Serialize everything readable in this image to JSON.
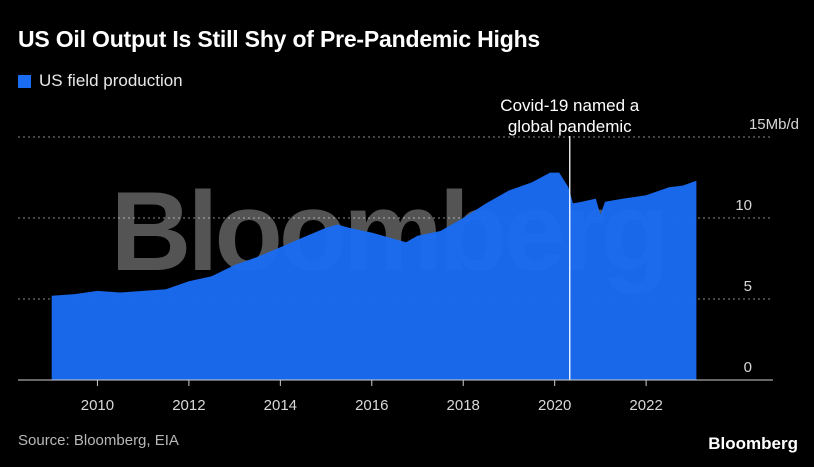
{
  "header": {
    "title": "US Oil Output Is Still Shy of Pre-Pandemic Highs"
  },
  "footer": {
    "source": "Source: Bloomberg, EIA",
    "brand": "Bloomberg"
  },
  "watermark": "Bloomberg",
  "colors": {
    "series": "#1a6cf2",
    "background": "#000000",
    "grid": "#8a8a8a"
  },
  "chart_data": {
    "type": "area",
    "title": "US Oil Output Is Still Shy of Pre-Pandemic Highs",
    "xlabel": "",
    "ylabel": "",
    "xlim": [
      2008.7,
      2024.6
    ],
    "ylim": [
      0,
      15
    ],
    "grid": true,
    "legend_position": "top-left",
    "y_ticks": [
      {
        "value": 0,
        "label": "0"
      },
      {
        "value": 5,
        "label": "5"
      },
      {
        "value": 10,
        "label": "10"
      },
      {
        "value": 15,
        "label": "15Mb/d"
      }
    ],
    "x_ticks": [
      {
        "value": 2010,
        "label": "2010"
      },
      {
        "value": 2012,
        "label": "2012"
      },
      {
        "value": 2014,
        "label": "2014"
      },
      {
        "value": 2016,
        "label": "2016"
      },
      {
        "value": 2018,
        "label": "2018"
      },
      {
        "value": 2020,
        "label": "2020"
      },
      {
        "value": 2022,
        "label": "2022"
      }
    ],
    "series": [
      {
        "name": "US field production",
        "x": [
          2009.0,
          2009.5,
          2010.0,
          2010.5,
          2011.0,
          2011.5,
          2012.0,
          2012.5,
          2013.0,
          2013.5,
          2014.0,
          2014.5,
          2015.0,
          2015.25,
          2015.5,
          2016.0,
          2016.5,
          2016.75,
          2017.0,
          2017.5,
          2018.0,
          2018.5,
          2019.0,
          2019.5,
          2019.9,
          2020.1,
          2020.3,
          2020.4,
          2020.6,
          2020.9,
          2021.0,
          2021.1,
          2021.5,
          2022.0,
          2022.5,
          2022.8,
          2023.0,
          2023.1
        ],
        "values": [
          5.2,
          5.3,
          5.5,
          5.4,
          5.5,
          5.6,
          6.1,
          6.4,
          7.1,
          7.6,
          8.2,
          8.8,
          9.4,
          9.6,
          9.4,
          9.1,
          8.7,
          8.5,
          8.9,
          9.2,
          10.0,
          10.9,
          11.7,
          12.2,
          12.8,
          12.8,
          11.9,
          10.9,
          11.0,
          11.2,
          10.2,
          11.0,
          11.2,
          11.4,
          11.9,
          12.0,
          12.2,
          12.3
        ]
      }
    ],
    "annotations": [
      {
        "x": 2020.33,
        "lines": [
          "Covid-19 named a",
          "global pandemic"
        ]
      }
    ]
  }
}
